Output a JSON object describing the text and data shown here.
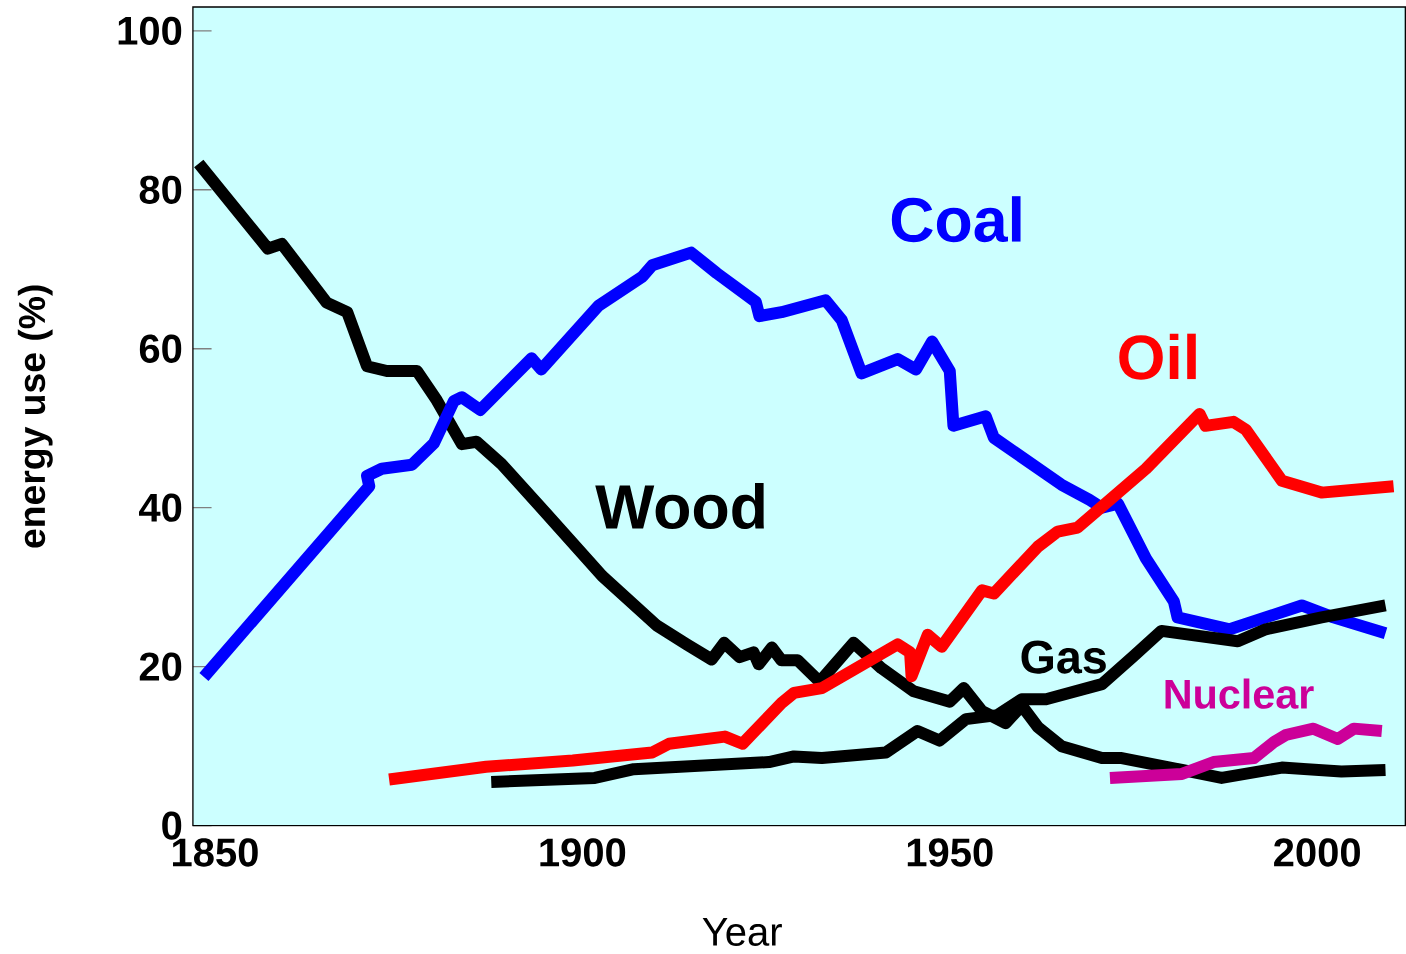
{
  "chart_data": {
    "type": "line",
    "xlabel": "Year",
    "ylabel": "energy use (%)",
    "xlim": [
      1847,
      2012
    ],
    "xticks": [
      1850,
      1900,
      1950,
      2000
    ],
    "ylim": [
      0,
      103
    ],
    "yticks": [
      0,
      20,
      40,
      60,
      80,
      100
    ],
    "series": [
      {
        "name": "Wood",
        "color": "#000000",
        "x": [
          1847.8,
          1857.2,
          1859.1,
          1865.2,
          1868.0,
          1870.7,
          1873.4,
          1877.5,
          1880.2,
          1883.6,
          1885.6,
          1889.0,
          1893.8,
          1902.7,
          1910.1,
          1914.2,
          1917.6,
          1919.3,
          1921.4,
          1923.3,
          1924.0,
          1925.8,
          1927.1,
          1929.3,
          1932.3,
          1936.9,
          1940.7,
          1945.1,
          1950.0,
          1951.9,
          1954.4,
          1957.6,
          1959.8,
          1962.0,
          1965.2,
          1970.7,
          1973.4,
          1981.6,
          1987.0,
          1995.2,
          2003.3,
          2009.3
        ],
        "values": [
          83.3,
          72.6,
          73.2,
          65.8,
          64.6,
          57.8,
          57.2,
          57.2,
          53.5,
          48.0,
          48.3,
          45.5,
          40.6,
          31.4,
          25.2,
          22.8,
          20.9,
          23.0,
          21.2,
          21.8,
          20.3,
          22.4,
          20.8,
          20.8,
          18.1,
          23.0,
          19.8,
          16.9,
          15.6,
          17.3,
          14.4,
          12.9,
          15.1,
          12.4,
          10.0,
          8.5,
          8.5,
          7.0,
          6.0,
          7.3,
          6.8,
          7.0
        ]
      },
      {
        "name": "Coal",
        "color": "#0000ff",
        "x": [
          1848.5,
          1871.0,
          1870.7,
          1872.7,
          1876.8,
          1879.8,
          1882.5,
          1883.6,
          1886.1,
          1893.1,
          1894.4,
          1902.2,
          1908.2,
          1909.5,
          1914.8,
          1918.3,
          1923.6,
          1924.1,
          1927.1,
          1933.1,
          1935.3,
          1938.0,
          1942.9,
          1945.4,
          1947.6,
          1950.0,
          1950.5,
          1954.9,
          1956.0,
          1965.2,
          1969.0,
          1970.7,
          1972.9,
          1976.7,
          1980.5,
          1981.0,
          1988.1,
          1997.9,
          2002.2,
          2009.3
        ],
        "values": [
          18.7,
          42.7,
          44.0,
          44.9,
          45.4,
          48.1,
          53.4,
          53.9,
          52.3,
          58.8,
          57.4,
          65.4,
          69.1,
          70.5,
          72.1,
          69.5,
          65.9,
          64.1,
          64.6,
          66.1,
          63.6,
          56.9,
          58.7,
          57.4,
          60.9,
          57.2,
          50.3,
          51.5,
          48.8,
          42.9,
          41.0,
          40.0,
          40.5,
          33.6,
          28.2,
          26.2,
          24.7,
          27.7,
          26.2,
          24.2
        ]
      },
      {
        "name": "Oil",
        "color": "#ff0000",
        "x": [
          1873.7,
          1886.9,
          1898.7,
          1909.5,
          1911.8,
          1919.4,
          1921.8,
          1927.1,
          1928.8,
          1932.6,
          1942.9,
          1944.6,
          1944.8,
          1947.0,
          1948.9,
          1954.4,
          1956.0,
          1962.0,
          1964.7,
          1967.4,
          1976.7,
          1984.0,
          1984.8,
          1988.6,
          1990.3,
          1995.2,
          2000.6,
          2010.4
        ],
        "values": [
          5.8,
          7.4,
          8.2,
          9.2,
          10.3,
          11.2,
          10.3,
          15.4,
          16.7,
          17.3,
          22.8,
          21.8,
          18.8,
          24.0,
          22.5,
          29.6,
          29.2,
          35.1,
          37.0,
          37.5,
          44.9,
          51.8,
          50.3,
          50.8,
          49.8,
          43.4,
          41.9,
          42.7
        ]
      },
      {
        "name": "Gas",
        "color": "#000000",
        "x": [
          1887.6,
          1901.7,
          1907.0,
          1925.4,
          1928.8,
          1932.6,
          1941.3,
          1945.6,
          1948.6,
          1952.2,
          1956.5,
          1959.8,
          1963.1,
          1970.7,
          1975.0,
          1978.8,
          1989.2,
          1993.0,
          2000.6,
          2009.3
        ],
        "values": [
          5.5,
          6.0,
          7.1,
          8.0,
          8.7,
          8.5,
          9.2,
          11.9,
          10.7,
          13.4,
          13.9,
          15.9,
          15.9,
          17.8,
          21.3,
          24.5,
          23.2,
          24.7,
          26.2,
          27.7
        ]
      },
      {
        "name": "Nuclear",
        "color": "#cc0099",
        "x": [
          1971.8,
          1981.6,
          1985.9,
          1991.4,
          1994.1,
          1995.7,
          1999.5,
          2002.8,
          2005.0,
          2008.8
        ],
        "values": [
          6.0,
          6.5,
          8.0,
          8.5,
          10.5,
          11.4,
          12.2,
          10.9,
          12.2,
          11.9
        ]
      }
    ]
  }
}
